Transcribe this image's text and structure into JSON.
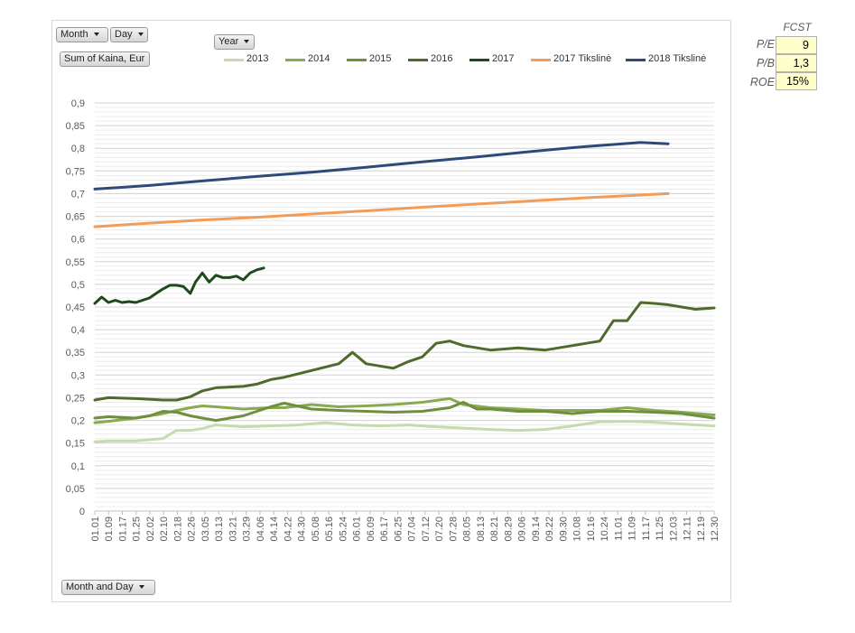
{
  "pivot": {
    "month_label": "Month",
    "day_label": "Day",
    "year_label": "Year",
    "values_label": "Sum of Kaina, Eur",
    "axis_label": "Month and Day"
  },
  "fcst": {
    "title": "FCST",
    "rows": [
      {
        "label": "P/E",
        "value": "9"
      },
      {
        "label": "P/B",
        "value": "1,3"
      },
      {
        "label": "ROE",
        "value": "15%"
      }
    ]
  },
  "chart_data": {
    "type": "line",
    "title": "",
    "xlabel": "",
    "ylabel": "",
    "ylim": [
      0,
      0.9
    ],
    "y_ticks": [
      "0",
      "0,05",
      "0,1",
      "0,15",
      "0,2",
      "0,25",
      "0,3",
      "0,35",
      "0,4",
      "0,45",
      "0,5",
      "0,55",
      "0,6",
      "0,65",
      "0,7",
      "0,75",
      "0,8",
      "0,85",
      "0,9"
    ],
    "x_ticks": [
      "01.01",
      "01.09",
      "01.17",
      "01.25",
      "02.02",
      "02.10",
      "02.18",
      "02.26",
      "03.05",
      "03.13",
      "03.21",
      "03.29",
      "04.06",
      "04.14",
      "04.22",
      "04.30",
      "05.08",
      "05.16",
      "05.24",
      "06.01",
      "06.09",
      "06.17",
      "06.25",
      "07.04",
      "07.12",
      "07.20",
      "07.28",
      "08.05",
      "08.13",
      "08.21",
      "08.29",
      "09.06",
      "09.14",
      "09.22",
      "09.30",
      "10.08",
      "10.16",
      "10.24",
      "11.01",
      "11.09",
      "11.17",
      "11.25",
      "12.03",
      "12.11",
      "12.19",
      "12.30"
    ],
    "legend_position": "top",
    "grid": true,
    "series": [
      {
        "name": "2013",
        "color": "#c6dbab",
        "x": [
          "01.01",
          "01.09",
          "01.25",
          "02.10",
          "02.18",
          "02.26",
          "03.05",
          "03.13",
          "03.29",
          "04.14",
          "04.30",
          "05.16",
          "06.01",
          "06.17",
          "07.04",
          "07.20",
          "08.05",
          "08.21",
          "09.06",
          "09.22",
          "10.08",
          "10.24",
          "11.09",
          "11.25",
          "12.11",
          "12.30"
        ],
        "values": [
          0.153,
          0.155,
          0.155,
          0.16,
          0.178,
          0.178,
          0.182,
          0.19,
          0.186,
          0.188,
          0.19,
          0.195,
          0.19,
          0.188,
          0.19,
          0.186,
          0.183,
          0.18,
          0.178,
          0.18,
          0.188,
          0.197,
          0.198,
          0.196,
          0.192,
          0.188
        ]
      },
      {
        "name": "2014",
        "color": "#8aaa52",
        "x": [
          "01.01",
          "01.09",
          "01.25",
          "02.10",
          "02.18",
          "02.26",
          "03.05",
          "03.13",
          "03.29",
          "04.14",
          "04.22",
          "05.08",
          "05.24",
          "06.09",
          "06.25",
          "07.12",
          "07.28",
          "08.05",
          "08.21",
          "09.06",
          "09.22",
          "10.08",
          "10.24",
          "11.09",
          "11.25",
          "12.11",
          "12.30"
        ],
        "values": [
          0.195,
          0.198,
          0.205,
          0.215,
          0.222,
          0.228,
          0.232,
          0.23,
          0.225,
          0.228,
          0.228,
          0.235,
          0.23,
          0.232,
          0.235,
          0.24,
          0.248,
          0.235,
          0.228,
          0.225,
          0.222,
          0.222,
          0.222,
          0.228,
          0.222,
          0.218,
          0.212
        ]
      },
      {
        "name": "2015",
        "color": "#6e8f3d",
        "x": [
          "01.01",
          "01.09",
          "01.25",
          "02.02",
          "02.10",
          "02.18",
          "02.26",
          "03.05",
          "03.13",
          "03.21",
          "03.29",
          "04.06",
          "04.14",
          "04.22",
          "05.08",
          "05.24",
          "06.09",
          "06.25",
          "07.12",
          "07.28",
          "08.05",
          "08.13",
          "08.21",
          "09.06",
          "09.22",
          "10.08",
          "10.24",
          "11.09",
          "11.25",
          "12.11",
          "12.30"
        ],
        "values": [
          0.205,
          0.208,
          0.205,
          0.21,
          0.22,
          0.218,
          0.21,
          0.205,
          0.2,
          0.205,
          0.21,
          0.22,
          0.23,
          0.238,
          0.225,
          0.222,
          0.22,
          0.218,
          0.22,
          0.228,
          0.24,
          0.225,
          0.225,
          0.22,
          0.22,
          0.215,
          0.22,
          0.22,
          0.218,
          0.215,
          0.205
        ]
      },
      {
        "name": "2016",
        "color": "#4e6a2c",
        "x": [
          "01.01",
          "01.09",
          "01.25",
          "02.10",
          "02.18",
          "02.26",
          "03.05",
          "03.13",
          "03.29",
          "04.06",
          "04.14",
          "04.22",
          "05.08",
          "05.24",
          "06.01",
          "06.09",
          "06.25",
          "07.04",
          "07.12",
          "07.20",
          "07.28",
          "08.05",
          "08.21",
          "09.06",
          "09.22",
          "10.08",
          "10.16",
          "10.24",
          "11.01",
          "11.09",
          "11.17",
          "11.25",
          "12.03",
          "12.11",
          "12.19",
          "12.30"
        ],
        "values": [
          0.245,
          0.25,
          0.248,
          0.245,
          0.245,
          0.252,
          0.265,
          0.272,
          0.275,
          0.28,
          0.29,
          0.295,
          0.31,
          0.325,
          0.35,
          0.325,
          0.315,
          0.33,
          0.34,
          0.37,
          0.375,
          0.365,
          0.355,
          0.36,
          0.355,
          0.365,
          0.37,
          0.375,
          0.42,
          0.42,
          0.46,
          0.458,
          0.455,
          0.45,
          0.445,
          0.448
        ]
      },
      {
        "name": "2017",
        "color": "#1e4a1e",
        "x": [
          "01.01",
          "01.05",
          "01.09",
          "01.13",
          "01.17",
          "01.21",
          "01.25",
          "01.29",
          "02.02",
          "02.06",
          "02.10",
          "02.14",
          "02.18",
          "02.22",
          "02.26",
          "03.01",
          "03.05",
          "03.09",
          "03.13",
          "03.17",
          "03.21",
          "03.25",
          "03.29",
          "04.02",
          "04.06",
          "04.10"
        ],
        "values": [
          0.458,
          0.472,
          0.46,
          0.465,
          0.46,
          0.462,
          0.46,
          0.465,
          0.47,
          0.48,
          0.49,
          0.498,
          0.498,
          0.495,
          0.48,
          0.505,
          0.525,
          0.505,
          0.52,
          0.515,
          0.515,
          0.518,
          0.51,
          0.525,
          0.532,
          0.536
        ]
      },
      {
        "name": "2017 Tikslinė",
        "color": "#f39c58",
        "x": [
          "01.01",
          "02.02",
          "03.05",
          "04.06",
          "05.08",
          "06.09",
          "07.12",
          "08.13",
          "09.14",
          "10.16",
          "11.17",
          "12.03"
        ],
        "values": [
          0.627,
          0.635,
          0.642,
          0.648,
          0.655,
          0.662,
          0.67,
          0.677,
          0.684,
          0.691,
          0.697,
          0.7
        ]
      },
      {
        "name": "2018 Tikslinė",
        "color": "#2e4a78",
        "x": [
          "01.01",
          "02.02",
          "03.05",
          "04.06",
          "05.08",
          "06.09",
          "07.12",
          "08.13",
          "09.14",
          "10.16",
          "11.17",
          "12.03"
        ],
        "values": [
          0.71,
          0.718,
          0.728,
          0.738,
          0.747,
          0.758,
          0.77,
          0.781,
          0.793,
          0.804,
          0.813,
          0.81
        ]
      }
    ]
  }
}
